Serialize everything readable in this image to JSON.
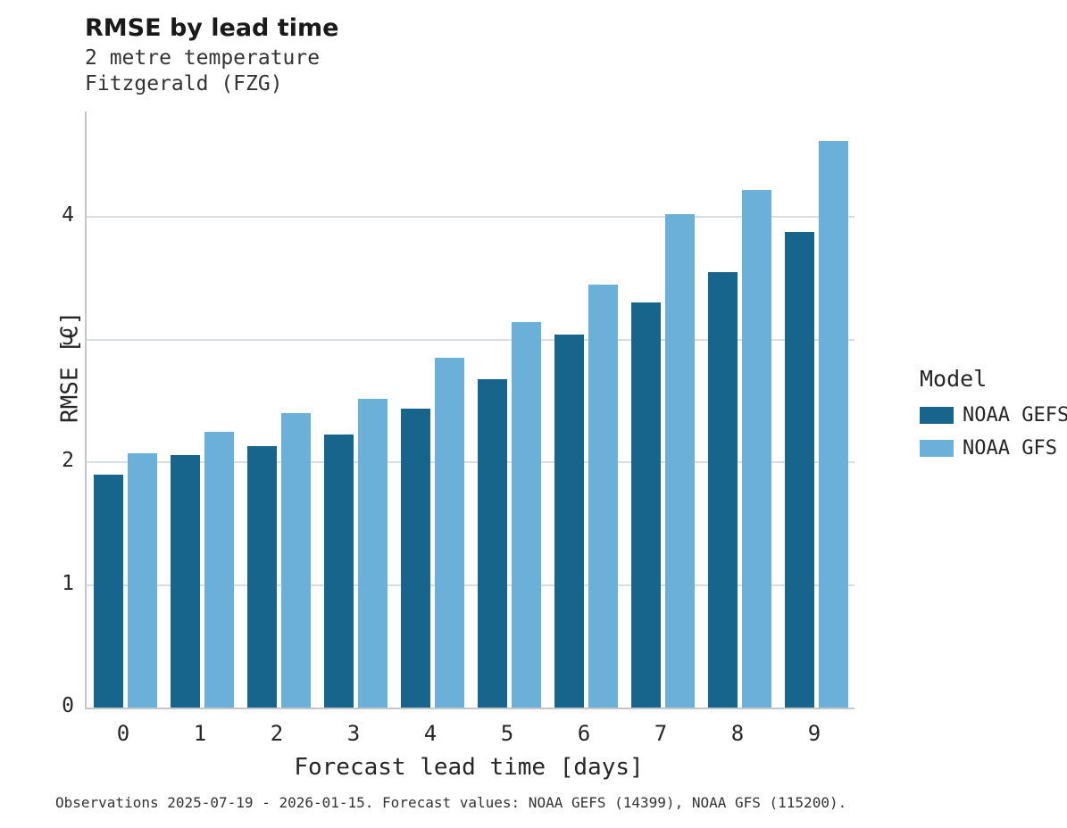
{
  "title": "RMSE by lead time",
  "subtitle_line1": "2 metre temperature",
  "subtitle_line2": "Fitzgerald (FZG)",
  "caption": "Observations 2025-07-19 - 2026-01-15. Forecast values: NOAA GEFS (14399), NOAA GFS (115200).",
  "legend": {
    "title": "Model",
    "entries": [
      {
        "label": "NOAA GEFS",
        "color": "#17648d"
      },
      {
        "label": "NOAA GFS",
        "color": "#6bb0d8"
      }
    ]
  },
  "chart_data": {
    "type": "bar",
    "title": "RMSE by lead time",
    "subtitle": "2 metre temperature — Fitzgerald (FZG)",
    "xlabel": "Forecast lead time [days]",
    "ylabel": "RMSE [C]",
    "categories": [
      "0",
      "1",
      "2",
      "3",
      "4",
      "5",
      "6",
      "7",
      "8",
      "9"
    ],
    "series": [
      {
        "name": "NOAA GEFS",
        "color": "#17648d",
        "values": [
          1.9,
          2.06,
          2.13,
          2.23,
          2.44,
          2.68,
          3.04,
          3.3,
          3.55,
          3.88
        ]
      },
      {
        "name": "NOAA GFS",
        "color": "#6bb0d8",
        "values": [
          2.07,
          2.25,
          2.4,
          2.52,
          2.85,
          3.14,
          3.45,
          4.02,
          4.22,
          4.62
        ]
      }
    ],
    "ylim": [
      0,
      4.86
    ],
    "yticks": [
      0,
      1,
      2,
      3,
      4
    ],
    "grid": true,
    "legend_position": "right"
  }
}
